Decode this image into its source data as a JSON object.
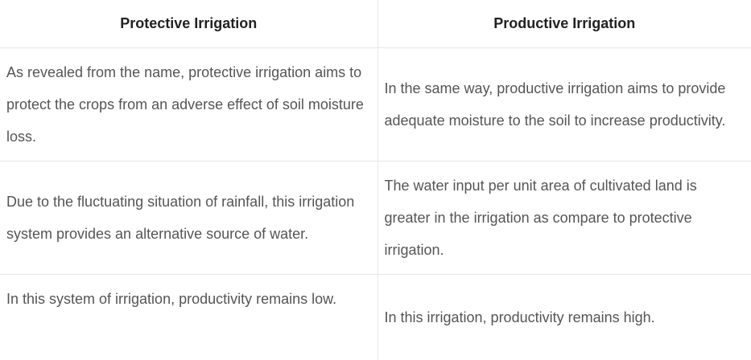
{
  "table": {
    "headers": [
      "Protective Irrigation",
      "Productive Irrigation"
    ],
    "rows": [
      [
        "As revealed from the name, protective irrigation aims to protect the crops from an adverse effect of soil moisture loss.",
        "In the same way, productive irrigation aims to provide adequate moisture to the soil to increase productivity."
      ],
      [
        "Due to the fluctuating situation of rainfall, this irrigation system provides an alternative source of water.",
        "The water input per unit area of cultivated land is greater in the irrigation as compare to protective irrigation."
      ],
      [
        "In this system of irrigation, productivity remains low.",
        "In this irrigation, productivity remains high."
      ]
    ]
  }
}
